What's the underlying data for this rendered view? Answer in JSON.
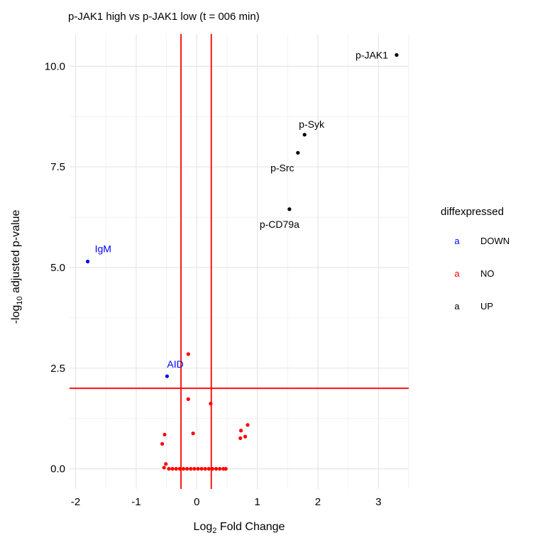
{
  "chart_data": {
    "type": "scatter",
    "title": "p-JAK1 high vs p-JAK1 low (t = 006 min)",
    "xlabel_pre": "Log",
    "xlabel_sub": "2",
    "xlabel_post": " Fold Change",
    "ylabel_pre": "-log",
    "ylabel_sub": "10",
    "ylabel_post": " adjusted p-value",
    "xlim": [
      -2.1,
      3.5
    ],
    "ylim": [
      -0.5,
      10.8
    ],
    "x_ticks": [
      -2,
      -1,
      0,
      1,
      2,
      3
    ],
    "x_tick_labels": [
      "-2",
      "-1",
      "0",
      "1",
      "2",
      "3"
    ],
    "y_ticks": [
      0,
      2.5,
      5,
      7.5,
      10
    ],
    "y_tick_labels": [
      "0.0",
      "2.5",
      "5.0",
      "7.5",
      "10.0"
    ],
    "grid": true,
    "vlines": [
      -0.26,
      0.24
    ],
    "hline": 2.0,
    "legend": {
      "title": "diffexpressed",
      "placement": "right",
      "key_glyph": "a",
      "entries": [
        {
          "label": "DOWN",
          "color": "#0000ff"
        },
        {
          "label": "NO",
          "color": "#ff0000"
        },
        {
          "label": "UP",
          "color": "#000000"
        }
      ]
    },
    "colors": {
      "DOWN": "#0000ff",
      "NO": "#ff0000",
      "UP": "#000000",
      "threshold_line": "#ff0000"
    },
    "series": [
      {
        "name": "DOWN",
        "points": [
          {
            "x": -1.8,
            "y": 5.15,
            "label": "IgM"
          },
          {
            "x": -0.49,
            "y": 2.3,
            "label": "AID"
          }
        ]
      },
      {
        "name": "NO",
        "points": [
          {
            "x": -0.14,
            "y": 2.85
          },
          {
            "x": -0.14,
            "y": 1.73
          },
          {
            "x": 0.23,
            "y": 1.62
          },
          {
            "x": -0.06,
            "y": 0.88
          },
          {
            "x": 0.84,
            "y": 1.09
          },
          {
            "x": 0.73,
            "y": 0.95
          },
          {
            "x": 0.8,
            "y": 0.8
          },
          {
            "x": 0.72,
            "y": 0.76
          },
          {
            "x": -0.53,
            "y": 0.85
          },
          {
            "x": -0.57,
            "y": 0.62
          },
          {
            "x": -0.51,
            "y": 0.12
          },
          {
            "x": -0.54,
            "y": 0.03
          },
          {
            "x": -0.46,
            "y": 0
          },
          {
            "x": -0.4,
            "y": 0
          },
          {
            "x": -0.34,
            "y": 0
          },
          {
            "x": -0.28,
            "y": 0
          },
          {
            "x": -0.22,
            "y": 0
          },
          {
            "x": -0.16,
            "y": 0
          },
          {
            "x": -0.1,
            "y": 0
          },
          {
            "x": -0.04,
            "y": 0
          },
          {
            "x": 0.02,
            "y": 0
          },
          {
            "x": 0.08,
            "y": 0
          },
          {
            "x": 0.14,
            "y": 0
          },
          {
            "x": 0.2,
            "y": 0
          },
          {
            "x": 0.26,
            "y": 0
          },
          {
            "x": 0.32,
            "y": 0
          },
          {
            "x": 0.38,
            "y": 0
          },
          {
            "x": 0.44,
            "y": 0
          },
          {
            "x": 0.48,
            "y": 0
          }
        ]
      },
      {
        "name": "UP",
        "points": [
          {
            "x": 3.3,
            "y": 10.28,
            "label": "p-JAK1"
          },
          {
            "x": 1.78,
            "y": 8.3,
            "label": "p-Syk"
          },
          {
            "x": 1.67,
            "y": 7.85,
            "label": "p-Src"
          },
          {
            "x": 1.53,
            "y": 6.45,
            "label": "p-CD79a"
          }
        ]
      }
    ]
  }
}
